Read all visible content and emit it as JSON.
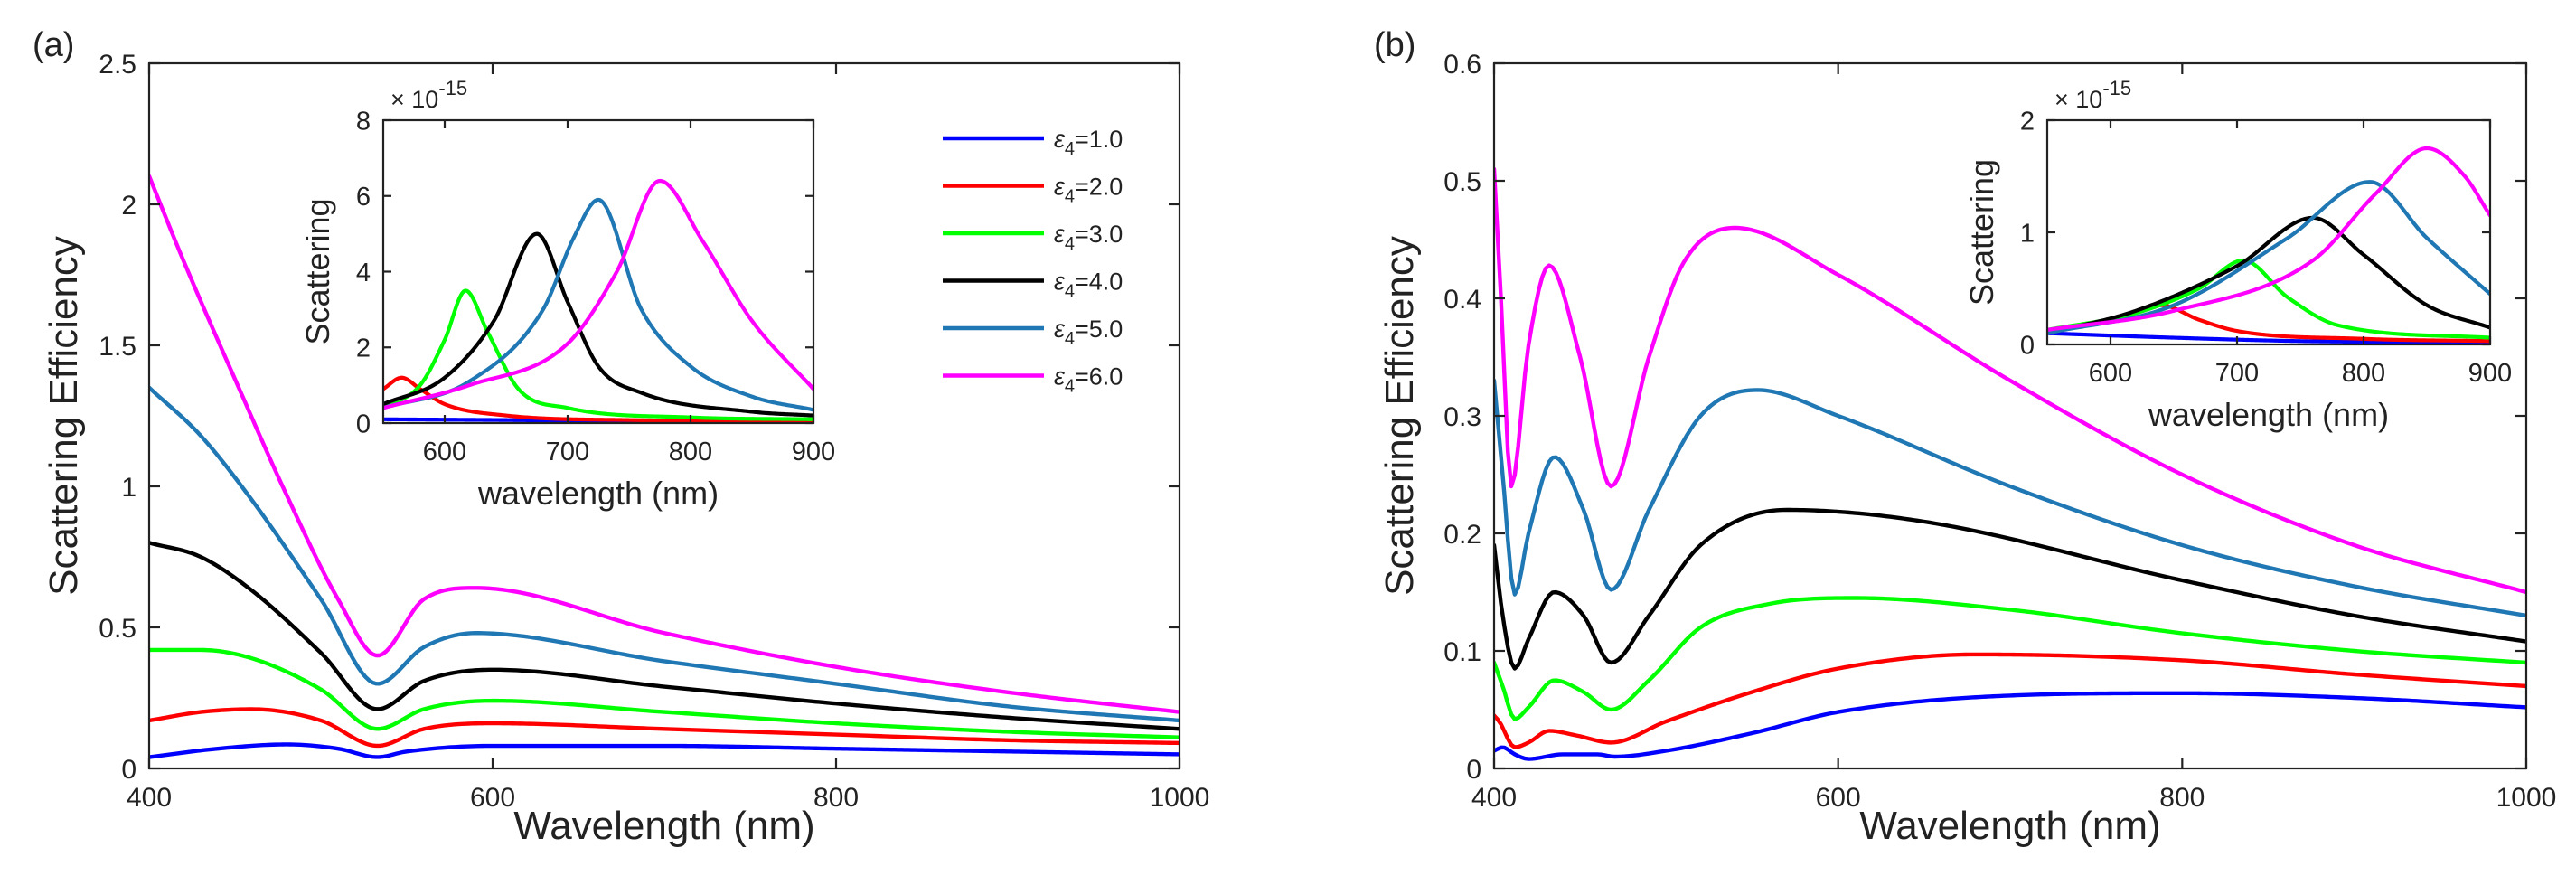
{
  "chart_data": [
    {
      "panel_label": "(a)",
      "type": "line",
      "xlabel": "Wavelength  (nm)",
      "ylabel": "Scattering Efficiency",
      "xlim": [
        400,
        1000
      ],
      "ylim": [
        0,
        2.5
      ],
      "xticks": [
        "400",
        "600",
        "800",
        "1000"
      ],
      "yticks": [
        "0",
        "0.5",
        "1",
        "1.5",
        "2",
        "2.5"
      ],
      "legend": {
        "placement": "top-right",
        "entries": [
          {
            "symbol": "ε",
            "sub": "4",
            "value": "=1.0",
            "color": "#0000ff"
          },
          {
            "symbol": "ε",
            "sub": "4",
            "value": "=2.0",
            "color": "#ff0000"
          },
          {
            "symbol": "ε",
            "sub": "4",
            "value": "=3.0",
            "color": "#00ff00"
          },
          {
            "symbol": "ε",
            "sub": "4",
            "value": "=4.0",
            "color": "#000000"
          },
          {
            "symbol": "ε",
            "sub": "4",
            "value": "=5.0",
            "color": "#1f77b4"
          },
          {
            "symbol": "ε",
            "sub": "4",
            "value": "=6.0",
            "color": "#ff00ff"
          }
        ]
      },
      "series": [
        {
          "name": "ε4=1.0",
          "color": "#0000ff",
          "x": [
            400,
            440,
            480,
            510,
            533,
            550,
            600,
            700,
            800,
            900,
            1000
          ],
          "y": [
            0.04,
            0.07,
            0.085,
            0.07,
            0.04,
            0.06,
            0.08,
            0.08,
            0.07,
            0.06,
            0.05
          ]
        },
        {
          "name": "ε4=2.0",
          "color": "#ff0000",
          "x": [
            400,
            430,
            460,
            500,
            533,
            560,
            600,
            700,
            800,
            900,
            1000
          ],
          "y": [
            0.17,
            0.2,
            0.21,
            0.17,
            0.08,
            0.14,
            0.16,
            0.14,
            0.12,
            0.1,
            0.09
          ]
        },
        {
          "name": "ε4=3.0",
          "color": "#00ff00",
          "x": [
            400,
            430,
            460,
            500,
            533,
            560,
            600,
            700,
            800,
            900,
            1000
          ],
          "y": [
            0.42,
            0.42,
            0.39,
            0.28,
            0.14,
            0.21,
            0.24,
            0.2,
            0.16,
            0.13,
            0.11
          ]
        },
        {
          "name": "ε4=4.0",
          "color": "#000000",
          "x": [
            400,
            430,
            460,
            500,
            533,
            560,
            600,
            700,
            800,
            900,
            1000
          ],
          "y": [
            0.8,
            0.75,
            0.63,
            0.41,
            0.21,
            0.31,
            0.35,
            0.29,
            0.23,
            0.18,
            0.14
          ]
        },
        {
          "name": "ε4=5.0",
          "color": "#1f77b4",
          "x": [
            400,
            430,
            460,
            500,
            533,
            560,
            590,
            700,
            800,
            900,
            1000
          ],
          "y": [
            1.35,
            1.18,
            0.95,
            0.6,
            0.3,
            0.43,
            0.48,
            0.38,
            0.3,
            0.22,
            0.17
          ]
        },
        {
          "name": "ε4=6.0",
          "color": "#ff00ff",
          "x": [
            400,
            420,
            450,
            480,
            510,
            533,
            560,
            590,
            700,
            800,
            900,
            1000
          ],
          "y": [
            2.1,
            1.8,
            1.38,
            0.97,
            0.6,
            0.4,
            0.6,
            0.64,
            0.48,
            0.36,
            0.27,
            0.2
          ]
        }
      ],
      "inset": {
        "type": "line",
        "xlabel": "wavelength  (nm)",
        "ylabel": "Scattering",
        "xlim": [
          550,
          900
        ],
        "ylim": [
          0,
          8
        ],
        "xticks": [
          "600",
          "700",
          "800",
          "900"
        ],
        "yticks": [
          "0",
          "2",
          "4",
          "6",
          "8"
        ],
        "exponent_label": "× 10",
        "exponent_power": "-15",
        "series": [
          {
            "name": "ε4=1.0",
            "color": "#0000ff",
            "x": [
              550,
              650,
              750,
              900
            ],
            "y": [
              0.1,
              0.08,
              0.05,
              0.03
            ]
          },
          {
            "name": "ε4=2.0",
            "color": "#ff0000",
            "x": [
              550,
              565,
              580,
              600,
              650,
              750,
              900
            ],
            "y": [
              0.9,
              1.2,
              0.9,
              0.5,
              0.2,
              0.08,
              0.05
            ]
          },
          {
            "name": "ε4=3.0",
            "color": "#00ff00",
            "x": [
              550,
              580,
              600,
              617,
              635,
              660,
              700,
              800,
              900
            ],
            "y": [
              0.4,
              1.0,
              2.2,
              3.5,
              2.4,
              0.9,
              0.4,
              0.15,
              0.1
            ]
          },
          {
            "name": "ε4=4.0",
            "color": "#000000",
            "x": [
              550,
              600,
              640,
              675,
              700,
              725,
              760,
              850,
              900
            ],
            "y": [
              0.5,
              1.2,
              2.7,
              5.0,
              3.2,
              1.5,
              0.8,
              0.3,
              0.2
            ]
          },
          {
            "name": "ε4=5.0",
            "color": "#1f77b4",
            "x": [
              550,
              620,
              680,
              705,
              725,
              760,
              800,
              850,
              900
            ],
            "y": [
              0.4,
              1.1,
              3.0,
              4.9,
              5.9,
              3.0,
              1.5,
              0.7,
              0.35
            ]
          },
          {
            "name": "ε4=6.0",
            "color": "#ff00ff",
            "x": [
              550,
              620,
              700,
              740,
              775,
              810,
              850,
              900
            ],
            "y": [
              0.4,
              1.0,
              2.1,
              4.0,
              6.4,
              4.8,
              2.7,
              0.9
            ]
          }
        ]
      }
    },
    {
      "panel_label": "(b)",
      "type": "line",
      "xlabel": "Wavelength  (nm)",
      "ylabel": "Scattering Efficiency",
      "xlim": [
        400,
        1000
      ],
      "ylim": [
        0,
        0.6
      ],
      "xticks": [
        "400",
        "600",
        "800",
        "1000"
      ],
      "yticks": [
        "0",
        "0.1",
        "0.2",
        "0.3",
        "0.4",
        "0.5",
        "0.6"
      ],
      "series": [
        {
          "name": "ε4=1.0",
          "color": "#0000ff",
          "x": [
            400,
            405,
            412,
            420,
            440,
            460,
            470,
            500,
            550,
            600,
            700,
            800,
            900,
            1000
          ],
          "y": [
            0.015,
            0.018,
            0.012,
            0.008,
            0.012,
            0.012,
            0.01,
            0.015,
            0.03,
            0.048,
            0.062,
            0.064,
            0.06,
            0.052
          ]
        },
        {
          "name": "ε4=2.0",
          "color": "#ff0000",
          "x": [
            400,
            403,
            412,
            420,
            432,
            448,
            468,
            500,
            550,
            600,
            680,
            800,
            900,
            1000
          ],
          "y": [
            0.045,
            0.04,
            0.018,
            0.022,
            0.032,
            0.028,
            0.022,
            0.04,
            0.065,
            0.085,
            0.097,
            0.092,
            0.08,
            0.07
          ]
        },
        {
          "name": "ε4=3.0",
          "color": "#00ff00",
          "x": [
            400,
            405,
            412,
            420,
            435,
            452,
            468,
            490,
            520,
            560,
            610,
            700,
            800,
            900,
            1000
          ],
          "y": [
            0.09,
            0.07,
            0.042,
            0.052,
            0.075,
            0.065,
            0.05,
            0.075,
            0.12,
            0.14,
            0.145,
            0.135,
            0.115,
            0.1,
            0.09
          ]
        },
        {
          "name": "ε4=4.0",
          "color": "#000000",
          "x": [
            400,
            405,
            412,
            420,
            435,
            452,
            468,
            490,
            520,
            570,
            650,
            800,
            900,
            1000
          ],
          "y": [
            0.19,
            0.13,
            0.085,
            0.11,
            0.15,
            0.13,
            0.09,
            0.13,
            0.19,
            0.22,
            0.21,
            0.16,
            0.13,
            0.108
          ]
        },
        {
          "name": "ε4=5.0",
          "color": "#1f77b4",
          "x": [
            400,
            405,
            412,
            420,
            435,
            452,
            468,
            490,
            520,
            553,
            600,
            700,
            800,
            900,
            1000
          ],
          "y": [
            0.33,
            0.25,
            0.148,
            0.2,
            0.265,
            0.22,
            0.152,
            0.22,
            0.3,
            0.322,
            0.3,
            0.24,
            0.19,
            0.155,
            0.13
          ]
        },
        {
          "name": "ε4=6.0",
          "color": "#ff00ff",
          "x": [
            400,
            404,
            410,
            420,
            432,
            450,
            468,
            490,
            510,
            540,
            600,
            700,
            800,
            900,
            1000
          ],
          "y": [
            0.51,
            0.4,
            0.24,
            0.36,
            0.428,
            0.35,
            0.24,
            0.35,
            0.43,
            0.46,
            0.42,
            0.33,
            0.25,
            0.19,
            0.15
          ]
        }
      ],
      "inset": {
        "type": "line",
        "xlabel": "wavelength  (nm)",
        "ylabel": "Scattering",
        "xlim": [
          550,
          900
        ],
        "ylim": [
          0,
          2
        ],
        "xticks": [
          "600",
          "700",
          "800",
          "900"
        ],
        "yticks": [
          "0",
          "1",
          "2"
        ],
        "exponent_label": "× 10",
        "exponent_power": "-15",
        "series": [
          {
            "name": "ε4=1.0",
            "color": "#0000ff",
            "x": [
              550,
              650,
              750,
              900
            ],
            "y": [
              0.1,
              0.06,
              0.03,
              0.02
            ]
          },
          {
            "name": "ε4=2.0",
            "color": "#ff0000",
            "x": [
              550,
              600,
              640,
              670,
              700,
              800,
              900
            ],
            "y": [
              0.12,
              0.22,
              0.35,
              0.22,
              0.12,
              0.05,
              0.03
            ]
          },
          {
            "name": "ε4=3.0",
            "color": "#00ff00",
            "x": [
              550,
              620,
              670,
              705,
              740,
              780,
              900
            ],
            "y": [
              0.13,
              0.28,
              0.5,
              0.75,
              0.42,
              0.17,
              0.06
            ]
          },
          {
            "name": "ε4=4.0",
            "color": "#000000",
            "x": [
              550,
              620,
              700,
              760,
              800,
              850,
              900
            ],
            "y": [
              0.1,
              0.3,
              0.7,
              1.13,
              0.8,
              0.35,
              0.15
            ]
          },
          {
            "name": "ε4=5.0",
            "color": "#1f77b4",
            "x": [
              550,
              650,
              740,
              805,
              850,
              900
            ],
            "y": [
              0.1,
              0.35,
              0.95,
              1.45,
              0.95,
              0.45
            ]
          },
          {
            "name": "ε4=6.0",
            "color": "#ff00ff",
            "x": [
              550,
              650,
              760,
              810,
              850,
              880,
              900
            ],
            "y": [
              0.13,
              0.3,
              0.75,
              1.35,
              1.75,
              1.5,
              1.15
            ]
          }
        ]
      }
    }
  ]
}
